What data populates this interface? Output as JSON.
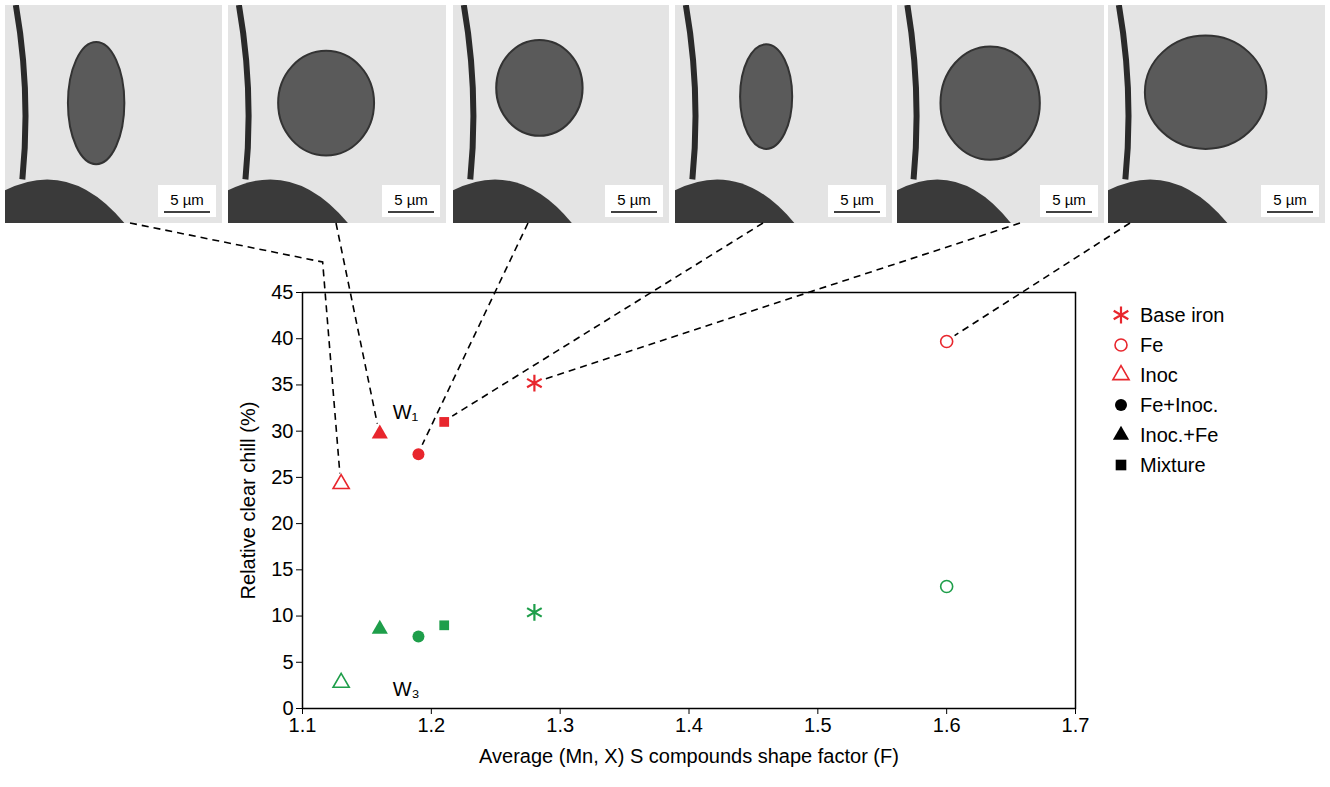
{
  "chart_data": {
    "type": "scatter",
    "xlabel": "Average (Mn, X) S compounds shape factor (F)",
    "ylabel": "Relative clear chill (%)",
    "xlim": [
      1.1,
      1.7
    ],
    "xticks": [
      1.1,
      1.2,
      1.3,
      1.4,
      1.5,
      1.6,
      1.7
    ],
    "ylim": [
      0,
      45
    ],
    "yticks": [
      0,
      5,
      10,
      15,
      20,
      25,
      30,
      35,
      40,
      45
    ],
    "legend": "right",
    "series": [
      {
        "name": "Base iron",
        "marker": "asterisk",
        "color": "#e8262d",
        "x": [
          1.28,
          1.28
        ],
        "values": [
          35.2,
          10.4
        ],
        "colors": [
          "#e8262d",
          "#1e9e4a"
        ]
      },
      {
        "name": "Fe",
        "marker": "open circle",
        "color": "#e8262d",
        "x": [
          1.6,
          1.6
        ],
        "values": [
          39.7,
          13.2
        ],
        "colors": [
          "#e8262d",
          "#1e9e4a"
        ]
      },
      {
        "name": "Inoc",
        "marker": "open triangle",
        "color": "#e8262d",
        "x": [
          1.13,
          1.13
        ],
        "values": [
          24.3,
          2.8
        ],
        "colors": [
          "#e8262d",
          "#1e9e4a"
        ]
      },
      {
        "name": "Fe+Inoc.",
        "marker": "circle",
        "color": "#000000",
        "x": [
          1.19,
          1.19
        ],
        "values": [
          27.5,
          7.8
        ],
        "colors": [
          "#e8262d",
          "#1e9e4a"
        ]
      },
      {
        "name": "Inoc.+Fe",
        "marker": "triangle",
        "color": "#000000",
        "x": [
          1.16,
          1.16
        ],
        "values": [
          29.7,
          8.6
        ],
        "colors": [
          "#e8262d",
          "#1e9e4a"
        ]
      },
      {
        "name": "Mixture",
        "marker": "square",
        "color": "#000000",
        "x": [
          1.21,
          1.21
        ],
        "values": [
          31.0,
          9.0
        ],
        "colors": [
          "#e8262d",
          "#1e9e4a"
        ]
      }
    ],
    "annotations": [
      {
        "text": "W₁",
        "x": 1.17,
        "y": 32
      },
      {
        "text": "W₃",
        "x": 1.17,
        "y": 2
      }
    ],
    "micrographs": [
      {
        "scale_bar": "5 µm",
        "points_to": "Inoc"
      },
      {
        "scale_bar": "5 µm",
        "points_to": "Inoc.+Fe"
      },
      {
        "scale_bar": "5 µm",
        "points_to": "Fe+Inoc."
      },
      {
        "scale_bar": "5 µm",
        "points_to": "Mixture"
      },
      {
        "scale_bar": "5 µm",
        "points_to": "Base iron"
      },
      {
        "scale_bar": "5 µm",
        "points_to": "Fe"
      }
    ]
  }
}
